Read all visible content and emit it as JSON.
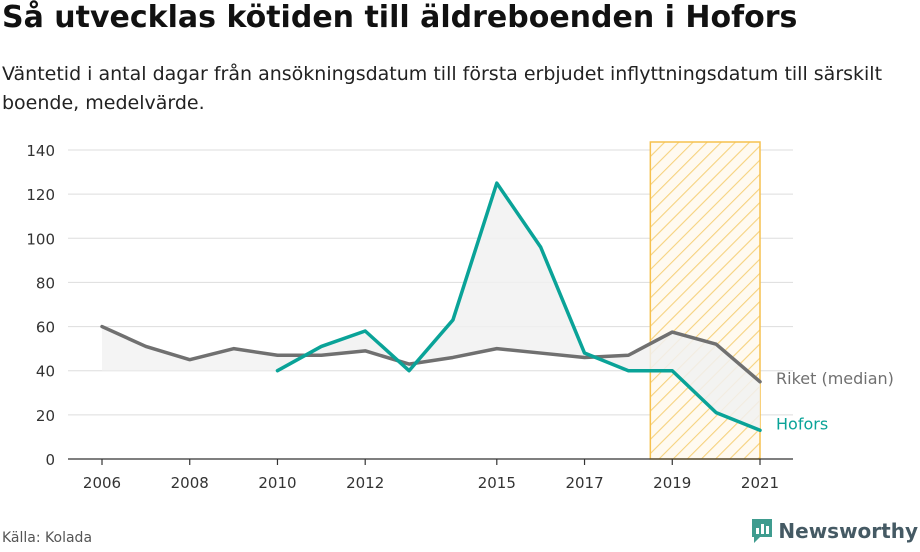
{
  "title": "Så utvecklas kötiden till äldreboenden i Hofors",
  "subtitle": "Väntetid i antal dagar från ansökningsdatum till första erbjudet inflyttningsdatum till särskilt boende, medelvärde.",
  "source": "Källa: Kolada",
  "brand": "Newsworthy",
  "colors": {
    "hofors": "#0aa398",
    "riket": "#707070",
    "highlight": "#f6c14e",
    "fill": "#f1f1f1",
    "grid": "#dddddd",
    "brand": "#455a64"
  },
  "chart_data": {
    "type": "line",
    "title": "Så utvecklas kötiden till äldreboenden i Hofors",
    "xlabel": "",
    "ylabel": "",
    "ylim": [
      0,
      140
    ],
    "xlim": [
      2006,
      2021
    ],
    "yticks": [
      0,
      20,
      40,
      60,
      80,
      100,
      120,
      140
    ],
    "xticks": [
      "2006",
      "2008",
      "2010",
      "2012",
      "2015",
      "2017",
      "2019",
      "2021"
    ],
    "grid": "horizontal",
    "legend": "inline-right",
    "highlight_range": [
      2018.5,
      2021
    ],
    "series": [
      {
        "name": "Riket (median)",
        "color": "#707070",
        "points": [
          [
            2006,
            60
          ],
          [
            2007,
            51
          ],
          [
            2008,
            45
          ],
          [
            2009,
            50
          ],
          [
            2010,
            47
          ],
          [
            2011,
            47
          ],
          [
            2012,
            49
          ],
          [
            2013,
            43
          ],
          [
            2014,
            46
          ],
          [
            2015,
            50
          ],
          [
            2016,
            48
          ],
          [
            2017,
            46
          ],
          [
            2018,
            47
          ],
          [
            2019,
            57.5
          ],
          [
            2020,
            52
          ],
          [
            2021,
            35
          ]
        ]
      },
      {
        "name": "Hofors",
        "color": "#0aa398",
        "points": [
          [
            2010,
            40
          ],
          [
            2011,
            51
          ],
          [
            2012,
            58
          ],
          [
            2013,
            40
          ],
          [
            2014,
            63
          ],
          [
            2015,
            125
          ],
          [
            2016,
            96
          ],
          [
            2017,
            48
          ],
          [
            2018,
            40
          ],
          [
            2019,
            40
          ],
          [
            2020,
            21
          ],
          [
            2021,
            13
          ]
        ]
      }
    ]
  }
}
